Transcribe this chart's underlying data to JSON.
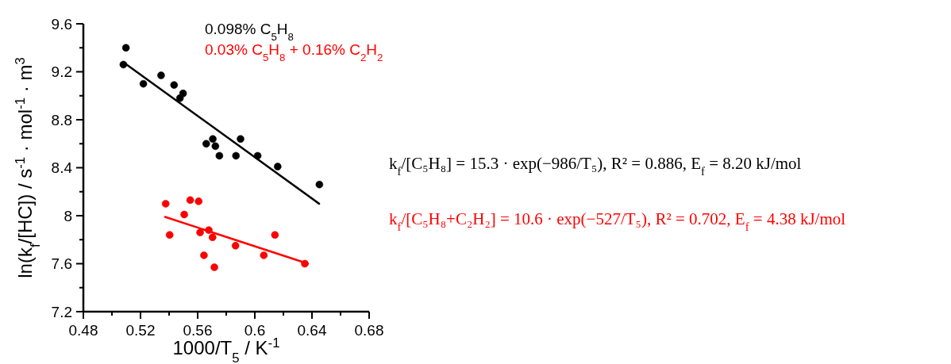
{
  "chart_data": {
    "type": "scatter",
    "xlabel": "1000/T$_{5}$ / K$^{-1}$",
    "ylabel": "ln(k$_{f}$/[HC]) / s$^{-1}$ · mol$^{-1}$ · m$^{3}$",
    "xlim": [
      0.48,
      0.68
    ],
    "ylim": [
      7.2,
      9.6
    ],
    "xticks": [
      0.48,
      {
        "value": 0.5,
        "label": null
      },
      0.52,
      {
        "value": 0.54,
        "label": null
      },
      0.56,
      {
        "value": 0.58,
        "label": null
      },
      {
        "value": 0.6,
        "label": "0.6"
      },
      {
        "value": 0.62,
        "label": null
      },
      0.64,
      {
        "value": 0.66,
        "label": null
      },
      0.68
    ],
    "yticks": [
      7.2,
      {
        "value": 7.4,
        "label": null
      },
      7.6,
      {
        "value": 7.8,
        "label": null
      },
      {
        "value": 8,
        "label": "8"
      },
      {
        "value": 8.2,
        "label": null
      },
      8.4,
      {
        "value": 8.6,
        "label": null
      },
      8.8,
      {
        "value": 9.0,
        "label": null
      },
      9.2,
      {
        "value": 9.4,
        "label": null
      },
      9.6
    ],
    "marker": "circle",
    "grid": false,
    "legend": "top right",
    "series": [
      {
        "name": "0.098% C$_{5}$H$_{8}$",
        "color": "#000000",
        "x": [
          0.5098,
          0.508,
          0.522,
          0.5344,
          0.5435,
          0.5498,
          0.5476,
          0.566,
          0.5706,
          0.5724,
          0.5752,
          0.5868,
          0.59,
          0.602,
          0.616,
          0.6452
        ],
        "values": [
          9.4,
          9.26,
          9.1,
          9.17,
          9.09,
          9.02,
          8.98,
          8.6,
          8.64,
          8.58,
          8.5,
          8.5,
          8.64,
          8.5,
          8.41,
          8.26
        ]
      },
      {
        "name": "0.03% C$_{5}$H$_{8}$ + 0.16% C$_{2}$H$_{2}$",
        "color": "#ff0000",
        "x": [
          0.5376,
          0.5404,
          0.5506,
          0.5548,
          0.5607,
          0.5617,
          0.5678,
          0.5704,
          0.5644,
          0.5717,
          0.5865,
          0.6063,
          0.6141,
          0.635
        ],
        "values": [
          8.1,
          7.84,
          8.01,
          8.13,
          8.12,
          7.86,
          7.88,
          7.82,
          7.67,
          7.57,
          7.75,
          7.67,
          7.84,
          7.6
        ]
      },
      {
        "type": "line",
        "marker": "none",
        "color": "#000000",
        "x": [
          0.508,
          0.645
        ],
        "values": [
          9.28,
          8.1
        ]
      },
      {
        "type": "line",
        "marker": "none",
        "color": "#ff0000",
        "x": [
          0.5372,
          0.6372
        ],
        "values": [
          7.99,
          7.6
        ]
      }
    ],
    "annotations": [
      "k$_{f}$/[C₅H₈] = 15.3 · exp(−986/T₅), R² = 0.886, E$_{f}$ = 8.20 kJ/mol",
      "k$_{f}$/[C₅H₈+C₂H₂] = 10.6 · exp(−527/T₅), R² = 0.702, E$_{f}$ = 4.38 kJ/mol"
    ]
  }
}
